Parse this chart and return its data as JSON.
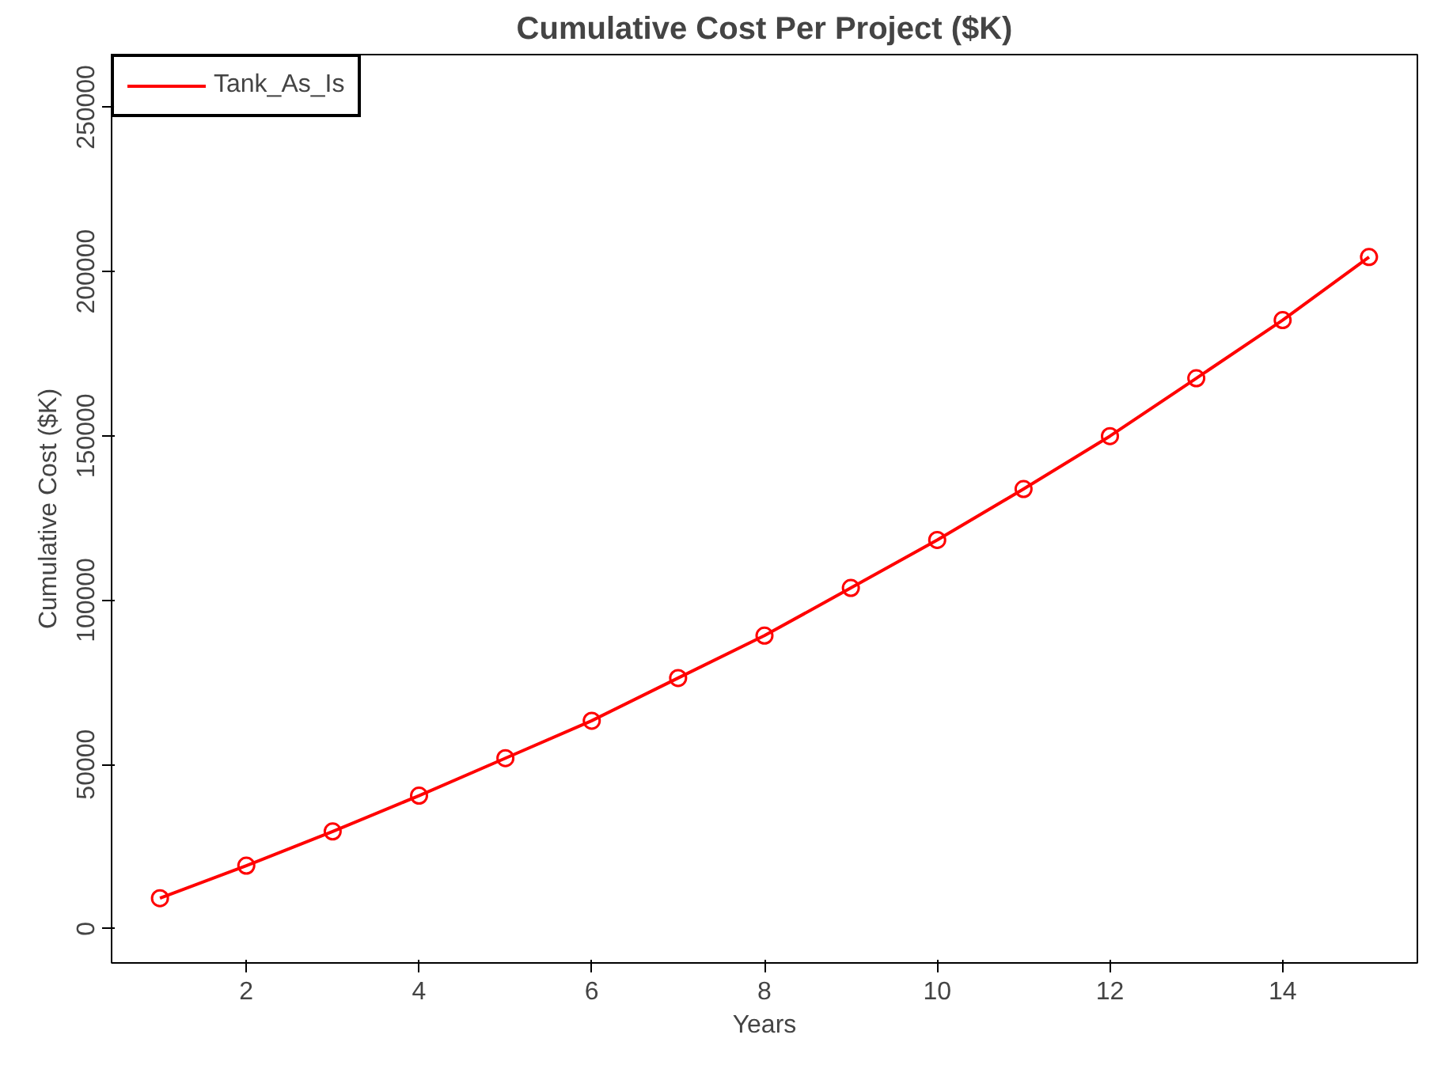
{
  "chart_data": {
    "type": "line",
    "title": "Cumulative Cost Per Project ($K)",
    "xlabel": "Years",
    "ylabel": "Cumulative Cost ($K)",
    "x": [
      1,
      2,
      3,
      4,
      5,
      6,
      7,
      8,
      9,
      10,
      11,
      12,
      13,
      14,
      15
    ],
    "series": [
      {
        "name": "Tank_As_Is",
        "color": "#ff0000",
        "values": [
          9300,
          19200,
          29600,
          40500,
          51900,
          63300,
          76300,
          89200,
          103700,
          118300,
          133800,
          149900,
          167500,
          185200,
          204400
        ]
      }
    ],
    "xlim": [
      0.44,
      15.56
    ],
    "ylim": [
      -10400,
      266000
    ],
    "xticks": [
      2,
      4,
      6,
      8,
      10,
      12,
      14
    ],
    "yticks": [
      0,
      50000,
      100000,
      150000,
      200000,
      250000
    ],
    "grid": false,
    "legend": "top left",
    "marker": "circle",
    "line_style": "solid"
  }
}
